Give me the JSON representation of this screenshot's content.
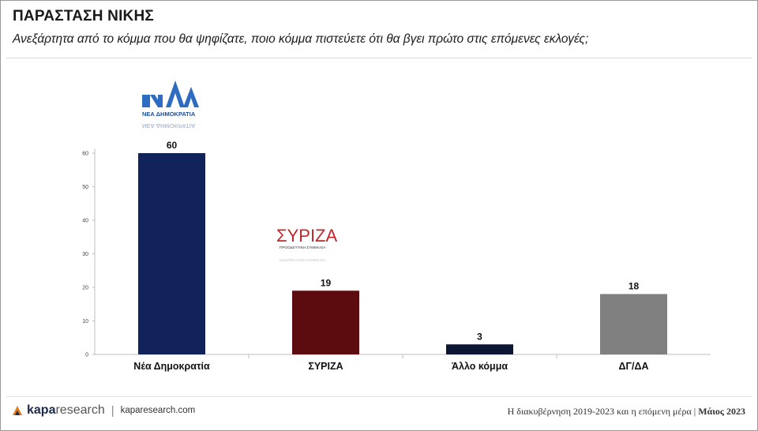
{
  "header": {
    "title": "ΠΑΡΑΣΤΑΣΗ ΝΙΚΗΣ",
    "subtitle": "Ανεξάρτητα από το κόμμα που θα ψηφίζατε, ποιο κόμμα πιστεύετε ότι θα βγει πρώτο στις επόμενες εκλογές;"
  },
  "logos": {
    "nd": {
      "mark": "ΝΔ",
      "text": "ΝΕΑ ΔΗΜΟΚΡΑΤΙΑ",
      "color": "#2d6cc0"
    },
    "syriza": {
      "mark": "ΣΥΡΙΖΑ",
      "text": "ΠΡΟΟΔΕΥΤΙΚΗ ΣΥΜΜΑΧΙΑ",
      "color": "#c0272d"
    }
  },
  "chart_data": {
    "type": "bar",
    "categories": [
      "Νέα Δημοκρατία",
      "ΣΥΡΙΖΑ",
      "Άλλο κόμμα",
      "ΔΓ/ΔΑ"
    ],
    "values": [
      60,
      19,
      3,
      18
    ],
    "colors": [
      "#12235c",
      "#5c0c0e",
      "#0d1633",
      "#808080"
    ],
    "yticks": [
      0,
      10,
      20,
      30,
      40,
      50,
      60
    ],
    "ylim": [
      0,
      60
    ],
    "grid": false
  },
  "footer": {
    "brand_bold": "kapa",
    "brand_light": "research",
    "separator": "|",
    "url": "kaparesearch.com",
    "caption": "Η διακυβέρνηση 2019-2023 και η επόμενη μέρα | ",
    "date": "Μάιος 2023"
  }
}
